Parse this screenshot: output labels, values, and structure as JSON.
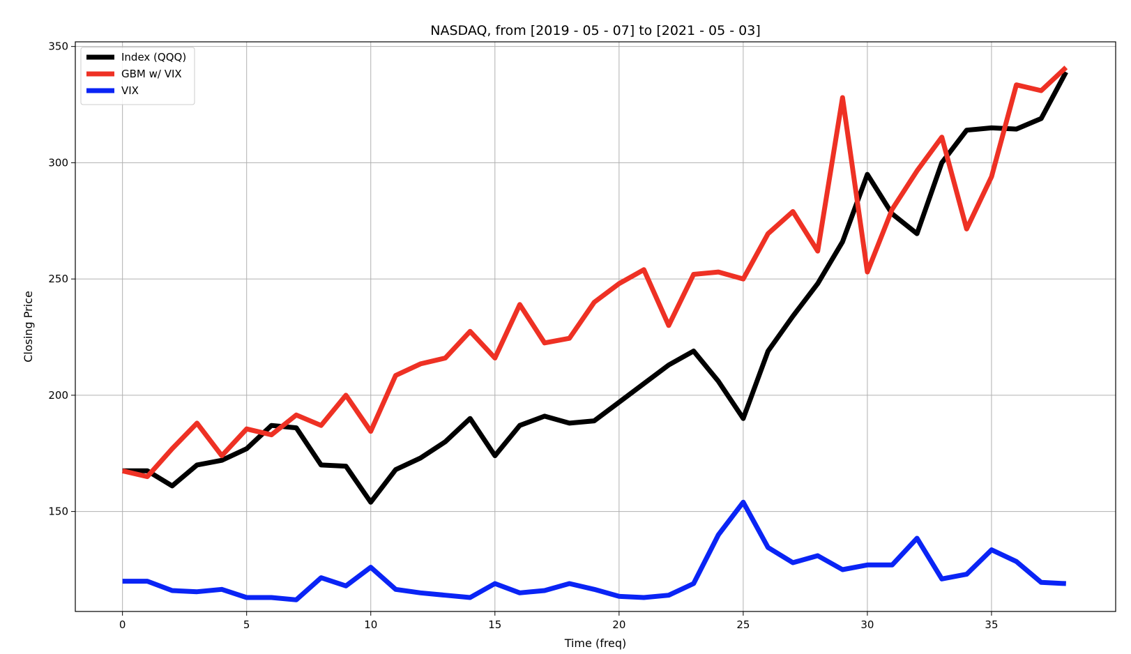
{
  "chart_data": {
    "type": "line",
    "title": "NASDAQ, from [2019 - 05 - 07] to [2021 - 05 - 03]",
    "xlabel": "Time (freq)",
    "ylabel": "Closing Price",
    "xlim": [
      -1.9,
      40.0
    ],
    "ylim": [
      107,
      352
    ],
    "xticks": [
      0,
      5,
      10,
      15,
      20,
      25,
      30,
      35
    ],
    "yticks": [
      150,
      200,
      250,
      300,
      350
    ],
    "grid": true,
    "legend_position": "top-left",
    "x": [
      0,
      1,
      2,
      3,
      4,
      5,
      6,
      7,
      8,
      9,
      10,
      11,
      12,
      13,
      14,
      15,
      16,
      17,
      18,
      19,
      20,
      21,
      22,
      23,
      24,
      25,
      26,
      27,
      28,
      29,
      30,
      31,
      32,
      33,
      34,
      35,
      36,
      37,
      38
    ],
    "series": [
      {
        "name": "Index (QQQ)",
        "color": "#000000",
        "values": [
          167.5,
          167.5,
          161,
          170,
          172,
          177,
          187,
          186,
          170,
          169.5,
          154,
          168,
          173,
          180,
          190,
          174,
          187,
          191,
          188,
          189,
          197,
          205,
          213,
          219,
          206,
          190,
          219,
          234,
          248,
          266,
          295,
          278,
          269.5,
          300,
          314,
          315,
          314.5,
          319,
          339
        ]
      },
      {
        "name": "GBM w/ VIX",
        "color": "#ee3124",
        "values": [
          167.5,
          165,
          177,
          188,
          174,
          185.5,
          183,
          191.5,
          187,
          200,
          184.5,
          208.5,
          213.5,
          216,
          227.5,
          216,
          239,
          222.5,
          224.5,
          240,
          248,
          254,
          230,
          252,
          253,
          250,
          269.5,
          279,
          262,
          328,
          253,
          280,
          296.5,
          311,
          271.5,
          294,
          333.5,
          331,
          341
        ]
      },
      {
        "name": "VIX",
        "color": "#0a24f5",
        "values": [
          120,
          120,
          116,
          115.5,
          116.5,
          113,
          113,
          112,
          121.5,
          118,
          126,
          116.5,
          115,
          114,
          113,
          119,
          115,
          116,
          119,
          116.5,
          113.5,
          113,
          114,
          119,
          140,
          154,
          134.5,
          128,
          131,
          125,
          127,
          127,
          138.5,
          121,
          123,
          133.5,
          128.5,
          119.5,
          119
        ]
      }
    ]
  }
}
